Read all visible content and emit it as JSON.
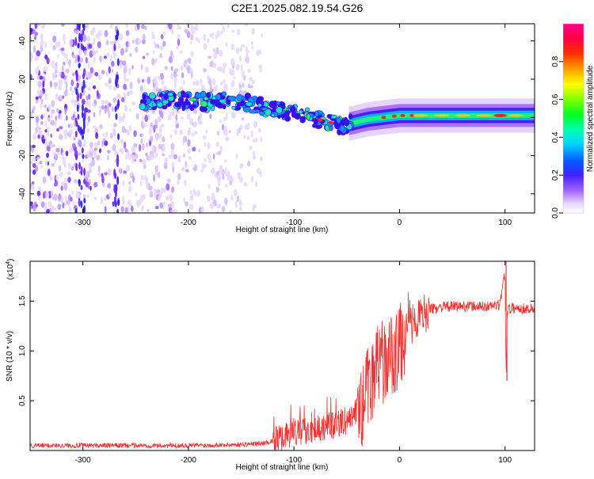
{
  "figure": {
    "title": "C2E1.2025.082.19.54.G26"
  },
  "chart_data": [
    {
      "type": "heatmap",
      "title": "C2E1.2025.082.19.54.G26",
      "xlabel": "Height of straight line (km)",
      "ylabel": "Frequency (Hz)",
      "xlim": [
        -350,
        128
      ],
      "ylim": [
        -50,
        49
      ],
      "x_ticks": [
        "-300",
        "-200",
        "-100",
        "0",
        "100"
      ],
      "y_ticks": [
        "-40",
        "-20",
        "0",
        "20",
        "40"
      ],
      "colorbar": {
        "label": "Normalized spectral amplitude",
        "range": [
          0,
          1
        ],
        "ticks": [
          "0.0",
          "0.2",
          "0.4",
          "0.6",
          "0.8"
        ]
      },
      "trace": {
        "x": [
          -245,
          -215,
          -185,
          -160,
          -140,
          -120,
          -100,
          -85,
          -70,
          -55,
          -45,
          -30,
          -15,
          0,
          20,
          50,
          95,
          128
        ],
        "y": [
          8,
          9,
          8,
          9,
          7,
          5,
          2,
          0,
          -2,
          -4,
          -3,
          -1,
          0,
          1,
          1,
          1,
          1,
          1
        ]
      },
      "noise_region_x": [
        -350,
        -130
      ],
      "grid": false
    },
    {
      "type": "line",
      "xlabel": "Height of straight line (km)",
      "ylabel": "SNR (10 * v/v)",
      "y_multiplier": "(x10^4)",
      "xlim": [
        -350,
        128
      ],
      "ylim": [
        0,
        19000
      ],
      "x_ticks": [
        "-300",
        "-200",
        "-100",
        "0",
        "100"
      ],
      "y_ticks": [
        "0.5",
        "1.0",
        "1.5"
      ],
      "series": [
        {
          "color": "#ee3333",
          "x": [
            -350,
            -300,
            -250,
            -200,
            -150,
            -130,
            -110,
            -100,
            -90,
            -80,
            -70,
            -60,
            -50,
            -40,
            -35,
            -30,
            -25,
            -20,
            -15,
            -10,
            -5,
            0,
            10,
            20,
            30,
            40,
            60,
            80,
            95,
            100,
            101,
            102,
            110,
            128
          ],
          "y": [
            500,
            500,
            500,
            500,
            600,
            700,
            1200,
            1800,
            2000,
            2200,
            2400,
            2600,
            3000,
            4000,
            4500,
            6500,
            7500,
            8500,
            8800,
            9200,
            9500,
            10500,
            12500,
            13500,
            14200,
            14400,
            14500,
            14450,
            14600,
            18000,
            7000,
            14200,
            14300,
            14200
          ]
        }
      ],
      "grid": false
    }
  ]
}
